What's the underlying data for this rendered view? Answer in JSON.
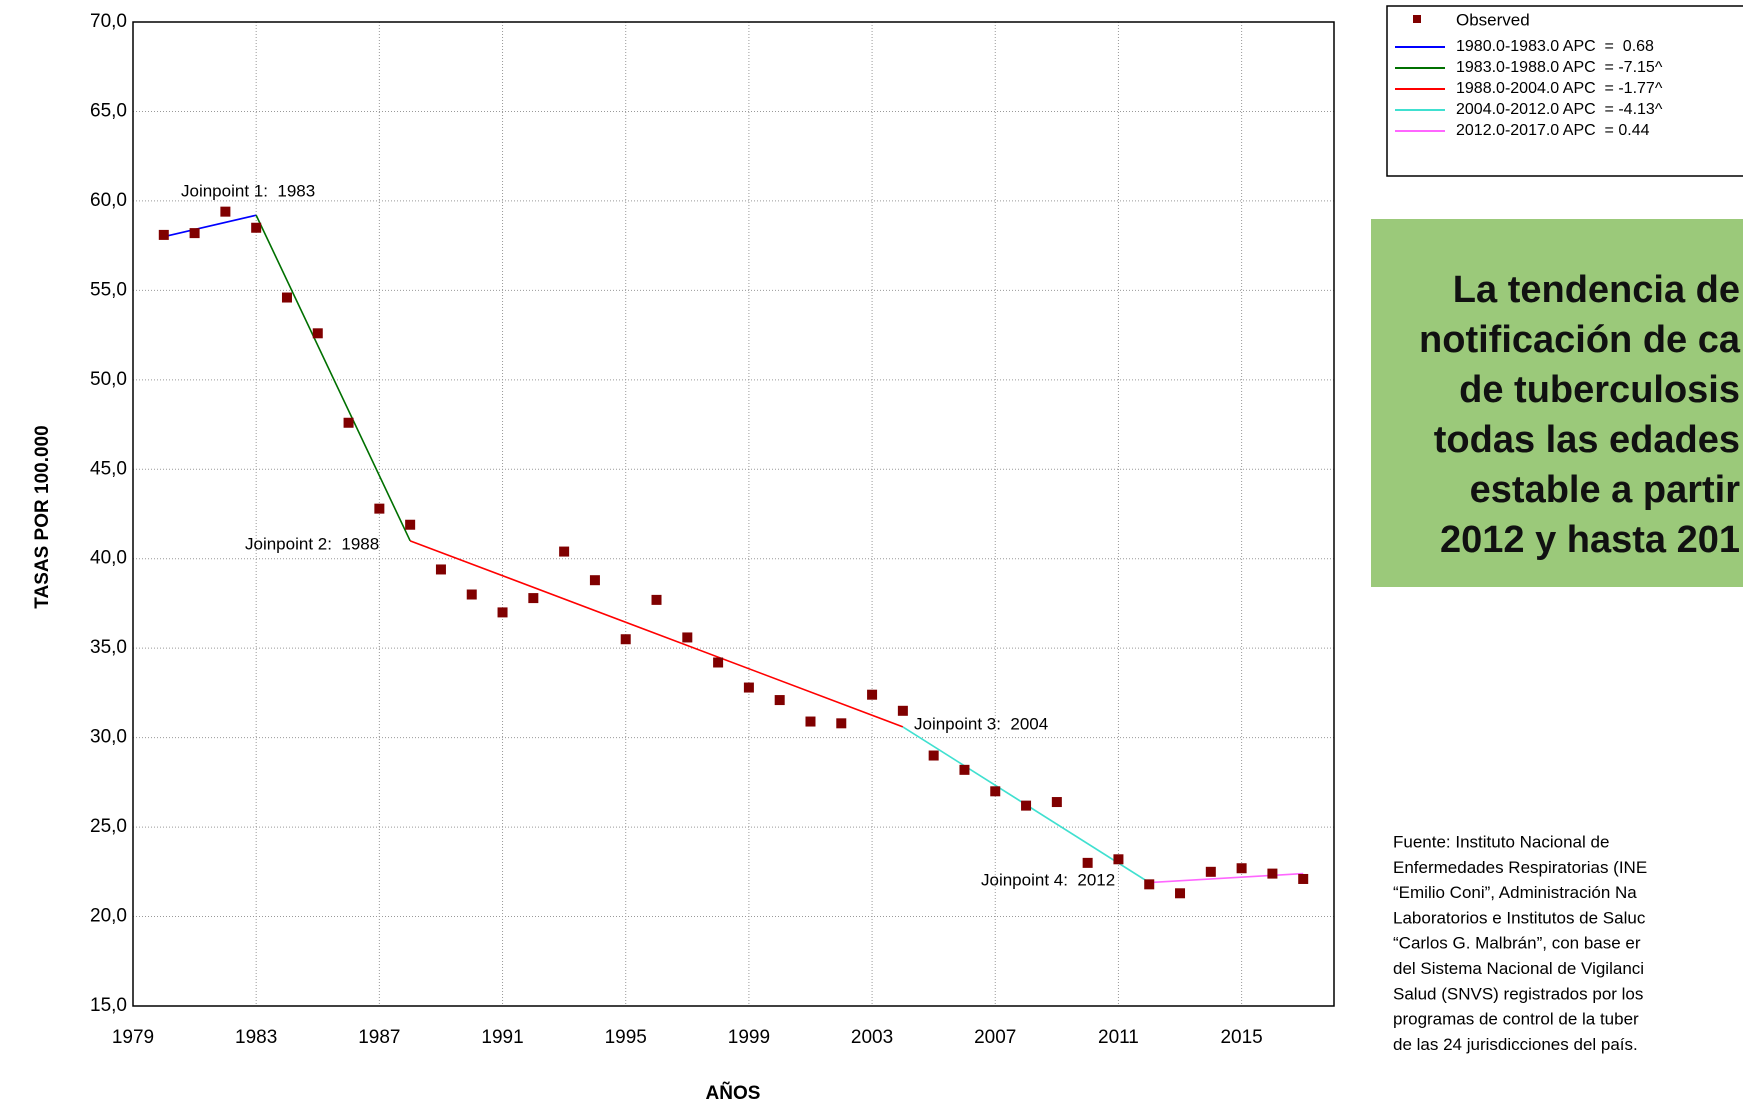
{
  "chart_data": {
    "type": "line",
    "y_label": "TASAS POR 100.000",
    "x_label": "AÑOS",
    "xlim": [
      1979,
      2018
    ],
    "xticks": [
      1979,
      1983,
      1987,
      1991,
      1995,
      1999,
      2003,
      2007,
      2011,
      2015
    ],
    "ylim": [
      15,
      70
    ],
    "yticks": [
      {
        "value": 15,
        "label": "15,0"
      },
      {
        "value": 20,
        "label": "20,0"
      },
      {
        "value": 25,
        "label": "25,0"
      },
      {
        "value": 30,
        "label": "30,0"
      },
      {
        "value": 35,
        "label": "35,0"
      },
      {
        "value": 40,
        "label": "40,0"
      },
      {
        "value": 45,
        "label": "45,0"
      },
      {
        "value": 50,
        "label": "50,0"
      },
      {
        "value": 55,
        "label": "55,0"
      },
      {
        "value": 60,
        "label": "60,0"
      },
      {
        "value": 65,
        "label": "65,0"
      },
      {
        "value": 70,
        "label": "70,0"
      }
    ],
    "grid": true,
    "observed": {
      "name": "Observed",
      "color": "#800000",
      "x": [
        1980,
        1981,
        1982,
        1983,
        1984,
        1985,
        1986,
        1987,
        1988,
        1989,
        1990,
        1991,
        1992,
        1993,
        1994,
        1995,
        1996,
        1997,
        1998,
        1999,
        2000,
        2001,
        2002,
        2003,
        2004,
        2005,
        2006,
        2007,
        2008,
        2009,
        2010,
        2011,
        2012,
        2013,
        2014,
        2015,
        2016,
        2017
      ],
      "values": [
        58.1,
        58.2,
        59.4,
        58.5,
        54.6,
        52.6,
        47.6,
        42.8,
        41.9,
        39.4,
        38.0,
        37.0,
        37.8,
        40.4,
        38.8,
        35.5,
        37.7,
        35.6,
        34.2,
        32.8,
        32.1,
        30.9,
        30.8,
        32.4,
        31.5,
        29.0,
        28.2,
        27.0,
        26.2,
        26.4,
        23.0,
        23.2,
        21.8,
        21.3,
        22.5,
        22.7,
        22.4,
        22.1
      ]
    },
    "series": [
      {
        "name": "1980.0-1983.0 APC  =  0.68",
        "color": "#0000ff",
        "x": [
          1980,
          1983
        ],
        "values": [
          58.0,
          59.2
        ]
      },
      {
        "name": "1983.0-1988.0 APC  = -7.15^",
        "color": "#007000",
        "x": [
          1983,
          1988
        ],
        "values": [
          59.2,
          41.0
        ]
      },
      {
        "name": "1988.0-2004.0 APC  = -1.77^",
        "color": "#ff0000",
        "x": [
          1988,
          2004
        ],
        "values": [
          41.0,
          30.6
        ]
      },
      {
        "name": "2004.0-2012.0 APC  = -4.13^",
        "color": "#40e0d0",
        "x": [
          2004,
          2012
        ],
        "values": [
          30.6,
          21.9
        ]
      },
      {
        "name": "2012.0-2017.0 APC  = 0.44",
        "color": "#ff66ff",
        "x": [
          2012,
          2017
        ],
        "values": [
          21.9,
          22.4
        ]
      }
    ],
    "annotations": [
      "Joinpoint 1:  1983",
      "Joinpoint 2:  1988",
      "Joinpoint 3:  2004",
      "Joinpoint 4:  2012"
    ]
  },
  "callout": [
    "La tendencia de",
    "notificación de ca",
    "de tuberculosis",
    "todas las edades",
    "estable a partir",
    "2012 y hasta 201"
  ],
  "source": [
    "Fuente: Instituto Nacional de",
    "Enfermedades Respiratorias (INE",
    "“Emilio Coni”, Administración Na",
    "Laboratorios e Institutos de Saluc",
    "“Carlos G. Malbrán”, con base er",
    "del Sistema Nacional de Vigilanci",
    "Salud (SNVS) registrados por los",
    "programas de control de la tuber",
    "de las 24 jurisdicciones del país."
  ]
}
